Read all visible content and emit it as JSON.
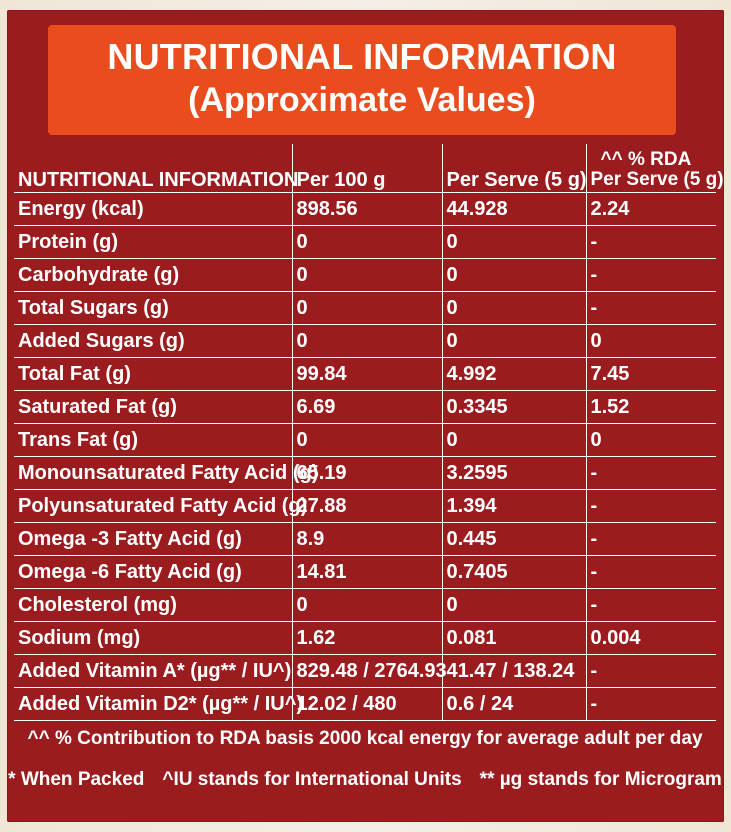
{
  "header": {
    "title": "NUTRITIONAL INFORMATION",
    "subtitle": "(Approximate Values)"
  },
  "table": {
    "columns": [
      "NUTRITIONAL INFORMATION",
      "Per 100 g",
      "Per Serve (5 g)",
      "^^ % RDA",
      "Per Serve (5 g)"
    ],
    "rows": [
      {
        "name": "Energy (kcal)",
        "per100": "898.56",
        "perServe": "44.928",
        "rda": "2.24"
      },
      {
        "name": "Protein (g)",
        "per100": "0",
        "perServe": "0",
        "rda": "-"
      },
      {
        "name": "Carbohydrate (g)",
        "per100": "0",
        "perServe": "0",
        "rda": "-"
      },
      {
        "name": "Total Sugars (g)",
        "per100": "0",
        "perServe": "0",
        "rda": "-"
      },
      {
        "name": "Added Sugars (g)",
        "per100": "0",
        "perServe": "0",
        "rda": "0"
      },
      {
        "name": "Total Fat (g)",
        "per100": "99.84",
        "perServe": "4.992",
        "rda": "7.45"
      },
      {
        "name": "Saturated Fat (g)",
        "per100": "6.69",
        "perServe": "0.3345",
        "rda": "1.52"
      },
      {
        "name": "Trans Fat (g)",
        "per100": "0",
        "perServe": "0",
        "rda": "0"
      },
      {
        "name": "Monounsaturated Fatty Acid (g)",
        "per100": "65.19",
        "perServe": "3.2595",
        "rda": "-"
      },
      {
        "name": "Polyunsaturated Fatty Acid (g)",
        "per100": "27.88",
        "perServe": "1.394",
        "rda": "-"
      },
      {
        "name": "Omega -3 Fatty Acid (g)",
        "per100": "8.9",
        "perServe": "0.445",
        "rda": "-"
      },
      {
        "name": "Omega -6 Fatty Acid (g)",
        "per100": "14.81",
        "perServe": "0.7405",
        "rda": "-"
      },
      {
        "name": "Cholesterol (mg)",
        "per100": "0",
        "perServe": "0",
        "rda": "-"
      },
      {
        "name": "Sodium (mg)",
        "per100": "1.62",
        "perServe": "0.081",
        "rda": "0.004"
      },
      {
        "name": "Added Vitamin A* (µg** / IU^)",
        "per100": "829.48 / 2764.93",
        "perServe": "41.47 / 138.24",
        "rda": "-"
      },
      {
        "name": "Added Vitamin D2* (µg** / IU^)",
        "per100": "12.02 / 480",
        "perServe": "0.6 / 24",
        "rda": "-"
      }
    ]
  },
  "footnotes": {
    "rda_note": "^^ % Contribution to RDA basis 2000 kcal energy for average adult per day",
    "packed": "* When Packed",
    "iu": "^IU stands for International Units",
    "mcg": "** µg stands for Microgram"
  },
  "colors": {
    "panel": "#9b1c1f",
    "title_box": "#e94c1d",
    "text": "#ffffff"
  }
}
